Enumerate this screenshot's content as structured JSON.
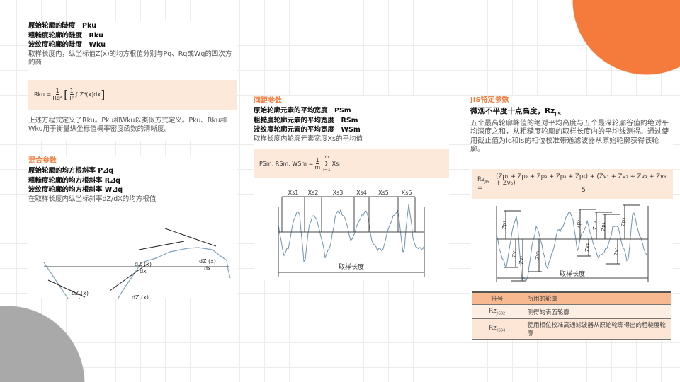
{
  "col1": {
    "titles": [
      "原始轮廓的陡度　Pku",
      "粗糙度轮廓的陡度　Rku",
      "波纹度轮廓的陡度　Wku"
    ],
    "desc": "取样长度内，纵坐标值Z(x)的均方根值分别与Pq、Rq或Wq的四次方的商",
    "formula": {
      "lhs": "Rku =",
      "f1_num": "1",
      "f1_den": "Rq⁴",
      "f2_num": "1",
      "f2_den": "lr",
      "integrand": "∫ Z⁴(x)dx"
    },
    "note": "上述方程式定义了Rku。Pku和Wku以类似方式定义。Pku、Rku和Wku用于衡量纵坐标值概率密度函数的清晰度。",
    "section": "混合参数",
    "titles2": [
      "原始轮廓的均方根斜率 P⊿q",
      "粗糙度轮廓的均方根斜率 R⊿q",
      "波纹度轮廓的均方根斜率 W⊿q"
    ],
    "desc2": "在取样长度内纵坐标斜率dZ/dX的均方根值",
    "slope_label_num": "dZ (x)",
    "slope_label_den": "dx"
  },
  "col2": {
    "section": "间距参数",
    "titles": [
      "原始轮廓元素的平均宽度　PSm",
      "粗糙度轮廓元素的平均宽度　RSm",
      "波纹度轮廓元素的平均宽度　WSm"
    ],
    "desc": "取样长度内轮廓元素宽度Xs的平均值",
    "formula": {
      "lhs": "PSm, RSm, WSm =",
      "num": "1",
      "den": "m",
      "sum": "Σ",
      "sum_top": "m",
      "sum_bot": "i=1",
      "term": "Xsᵢ"
    },
    "xs_labels": [
      "Xs1",
      "Xs2",
      "Xs3",
      "Xs4",
      "Xs5",
      "Xs6"
    ],
    "axis_label": "取样长度"
  },
  "col3": {
    "section": "JIS特定参数",
    "title": "微观不平度十点高度，Rz",
    "title_sub": "JIS",
    "desc": "五个最高轮廓峰值的绝对平均高度与五个最深轮廓谷值的绝对平均深度之和，从粗糙度轮廓的取样长度内的平均线测得。通过使用截止值为lc和ls的相位校准带通滤波器从原始轮廓获得该轮廓。",
    "formula": {
      "lhs": "Rz",
      "lhs_sub": "JIS",
      "eq": "=",
      "num": "(Zp₁ + Zp₂ + Zp₃ + Zp₄ + Zp₅) + (Zv₁ + Zv₂ + Zv₃ + Zv₄ + Zv₅)",
      "den": "5"
    },
    "peak_labels": [
      "Zp₁",
      "Zp₂",
      "Zp₃",
      "Zp₄",
      "Zp₅"
    ],
    "valley_labels": [
      "Zv₁",
      "Zv₂",
      "Zv₃",
      "Zv₄",
      "Zv₅"
    ],
    "axis_label": "取样长度",
    "table": {
      "headers": [
        "符号",
        "所用的轮廓"
      ],
      "rows": [
        {
          "sym": "Rz",
          "sub": "JIS82",
          "desc": "测得的表面轮廓"
        },
        {
          "sym": "Rz",
          "sub": "JIS94",
          "desc": "使用相位校准高通滤波器从原始轮廓得出的粗糙度轮廓"
        }
      ]
    }
  },
  "colors": {
    "accent": "#f47b3b",
    "formula_bg": "#fde9da",
    "profile": "#6f93b3"
  }
}
